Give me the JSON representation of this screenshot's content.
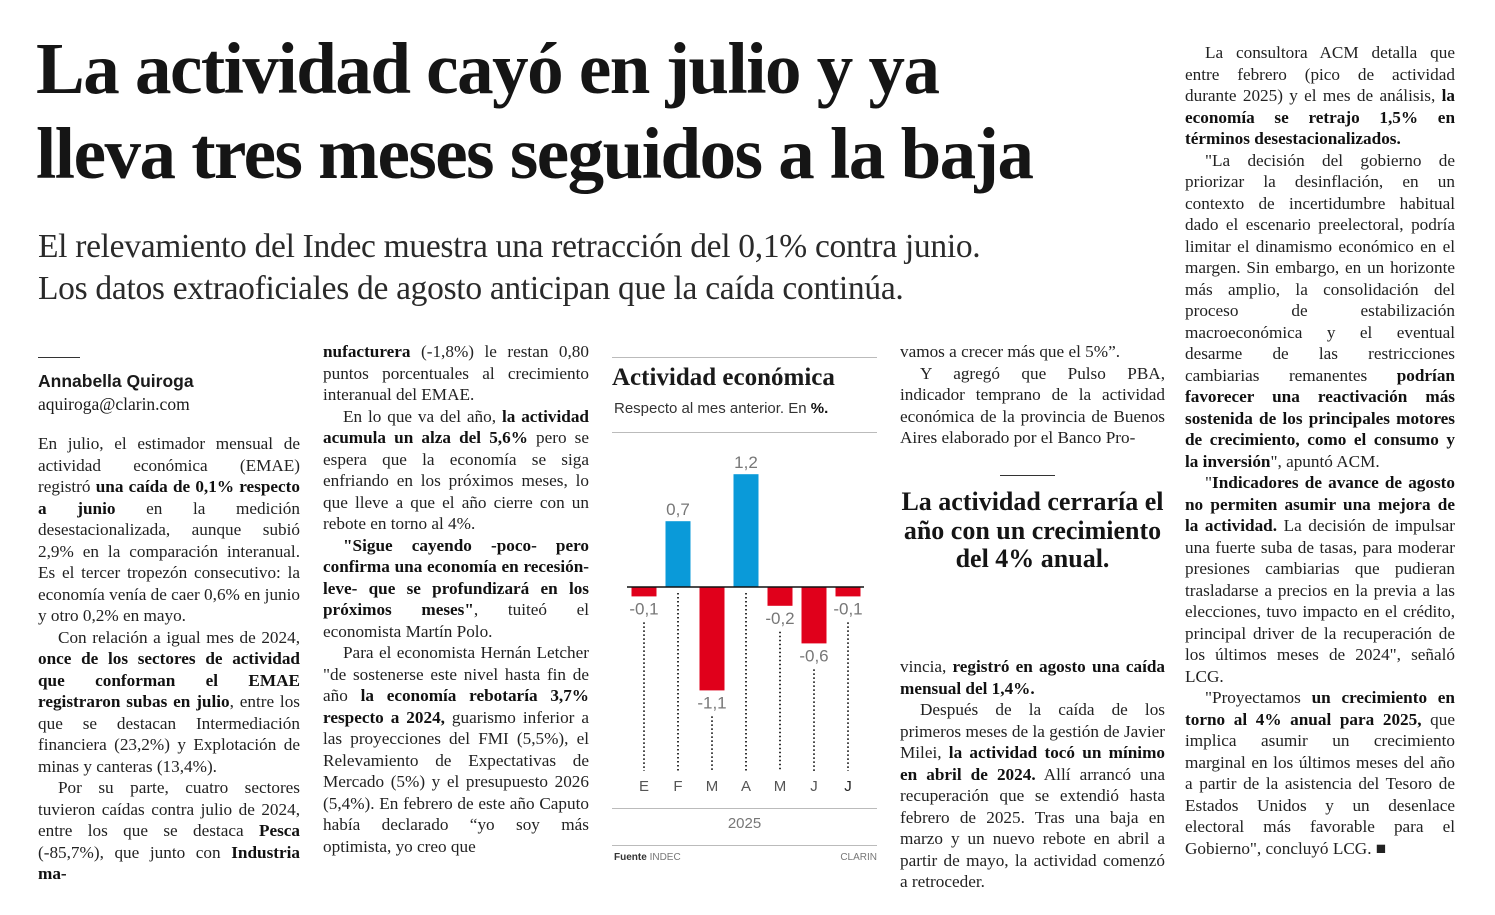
{
  "headline": [
    "La actividad cayó en julio y ya",
    "lleva tres meses seguidos a la baja"
  ],
  "deck": [
    "El relevamiento del Indec muestra una retracción del 0,1% contra junio.",
    "Los datos extraoficiales de agosto anticipan que la caída continúa."
  ],
  "byline": {
    "author": "Annabella Quiroga",
    "email": "aquiroga@clarin.com"
  },
  "columns": [
    [
      {
        "noind": true,
        "segs": [
          {
            "t": "En julio, el estimador mensual de actividad económica (EMAE) registró "
          },
          {
            "t": "una caída de 0,1% respecto a junio",
            "b": true
          },
          {
            "t": " en la medición desestacionalizada, aunque subió 2,9% en la comparación interanual. Es el tercer tropezón consecutivo: la economía venía de caer 0,6% en junio y otro 0,2% en mayo."
          }
        ]
      },
      {
        "segs": [
          {
            "t": "Con relación a igual mes de 2024, "
          },
          {
            "t": "once de los sectores de actividad que conforman el EMAE registraron subas en julio",
            "b": true
          },
          {
            "t": ", entre los que se destacan Intermediación financiera (23,2%) y Explotación de minas y canteras (13,4%)."
          }
        ]
      },
      {
        "segs": [
          {
            "t": "Por su parte, cuatro sectores tuvieron caídas contra julio de 2024, entre los que se destaca "
          },
          {
            "t": "Pesca",
            "b": true
          },
          {
            "t": " (-85,7%), que junto con "
          },
          {
            "t": "Industria ma-",
            "b": true
          }
        ]
      }
    ],
    [
      {
        "noind": true,
        "segs": [
          {
            "t": "nufacturera",
            "b": true
          },
          {
            "t": " (-1,8%) le restan 0,80 puntos porcentuales al crecimiento interanual del EMAE."
          }
        ]
      },
      {
        "segs": [
          {
            "t": "En lo que va del año, "
          },
          {
            "t": "la actividad acumula un alza del 5,6%",
            "b": true
          },
          {
            "t": " pero se espera que la economía se siga enfriando en los próximos meses, lo que lleve a que el año cierre con un rebote en torno al 4%."
          }
        ]
      },
      {
        "segs": [
          {
            "t": "\"Sigue cayendo -poco- pero confirma una economía en recesión-leve- que se profundizará en los próximos meses\"",
            "b": true
          },
          {
            "t": ", tuiteó el economista Martín Polo."
          }
        ]
      },
      {
        "segs": [
          {
            "t": "Para el economista Hernán Letcher \"de sostenerse este nivel hasta fin de año "
          },
          {
            "t": "la economía rebotaría 3,7% respecto a 2024,",
            "b": true
          },
          {
            "t": " guarismo inferior a las proyecciones del FMI (5,5%), el Relevamiento de Expectativas de Mercado (5%) y el presupuesto 2026 (5,4%). En febrero de este año Caputo había declarado “yo soy más optimista, yo creo que"
          }
        ]
      }
    ],
    [
      {
        "noind": true,
        "segs": [
          {
            "t": "vamos a crecer más que el 5%”."
          }
        ]
      },
      {
        "segs": [
          {
            "t": "Y agregó que Pulso PBA, indicador temprano de la actividad económica de la provincia de Buenos Aires elaborado por el Banco Pro-"
          }
        ]
      }
    ],
    [
      {
        "noind": true,
        "segs": [
          {
            "t": "vincia, "
          },
          {
            "t": "registró en agosto una caída mensual del 1,4%.",
            "b": true
          }
        ]
      },
      {
        "segs": [
          {
            "t": "Después de la caída de los primeros meses de la gestión de Javier Milei, "
          },
          {
            "t": "la actividad tocó un mínimo en abril de 2024.",
            "b": true
          },
          {
            "t": " Allí arrancó una recuperación que se extendió hasta febrero de 2025. Tras una baja en marzo y un nuevo rebote en abril a partir de mayo, la actividad comenzó a retroceder."
          }
        ]
      }
    ],
    [
      {
        "segs": [
          {
            "t": "La consultora ACM detalla que entre febrero (pico de actividad durante 2025) y el mes de análisis, "
          },
          {
            "t": "la economía se retrajo 1,5% en términos desestacionalizados.",
            "b": true
          }
        ]
      },
      {
        "segs": [
          {
            "t": "\"La decisión del gobierno de priorizar la desinflación, en un contexto de incertidumbre habitual dado el escenario preelectoral, podría limitar el dinamismo económico en el margen. Sin embargo, en un horizonte más amplio, la consolidación del proceso de estabilización macroeconómica y el eventual desarme de las restricciones cambiarias remanentes "
          },
          {
            "t": "podrían favorecer una reactivación más sostenida de los principales motores de crecimiento, como el consumo y la inversión",
            "b": true
          },
          {
            "t": "\", apuntó ACM."
          }
        ]
      },
      {
        "segs": [
          {
            "t": "\""
          },
          {
            "t": "Indicadores de avance de agosto no permiten asumir una mejora de la actividad.",
            "b": true
          },
          {
            "t": " La decisión de impulsar una fuerte suba de tasas, para moderar presiones cambiarias que pudieran trasladarse a precios en la previa a las elecciones, tuvo impacto en el crédito, principal driver de la recuperación de los últimos meses de 2024\", señaló LCG."
          }
        ]
      },
      {
        "segs": [
          {
            "t": "\"Proyectamos "
          },
          {
            "t": "un crecimiento en torno al 4% anual para 2025,",
            "b": true
          },
          {
            "t": " que implica asumir un crecimiento marginal en los últimos meses del año a partir de la asistencia del Tesoro de Estados Unidos y un desenlace electoral más favorable para el Gobierno\", concluyó LCG. ■"
          }
        ]
      }
    ]
  ],
  "pull_quote": "La actividad cerraría el año con un crecimiento del 4% anual.",
  "chart": {
    "title": "Actividad económica",
    "subtitle": "Respecto al mes anterior. En ",
    "subtitle_unit": "%.",
    "source_label": "Fuente",
    "source": "INDEC",
    "credit": "CLARIN",
    "colors": {
      "positive": "#0a9ad9",
      "negative": "#e0001b"
    }
  },
  "chart_data": {
    "type": "bar",
    "title": "Actividad económica",
    "subtitle": "Respecto al mes anterior. En %.",
    "categories": [
      "E",
      "F",
      "M",
      "A",
      "M",
      "J",
      "J"
    ],
    "values": [
      -0.1,
      0.7,
      -1.1,
      1.2,
      -0.2,
      -0.6,
      -0.1
    ],
    "labels": [
      "-0,1",
      "0,7",
      "-1,1",
      "1,2",
      "-0,2",
      "-0,6",
      "-0,1"
    ],
    "xlabel": "2025",
    "ylabel": "",
    "ylim": [
      -1.3,
      1.3
    ],
    "grid": false
  }
}
